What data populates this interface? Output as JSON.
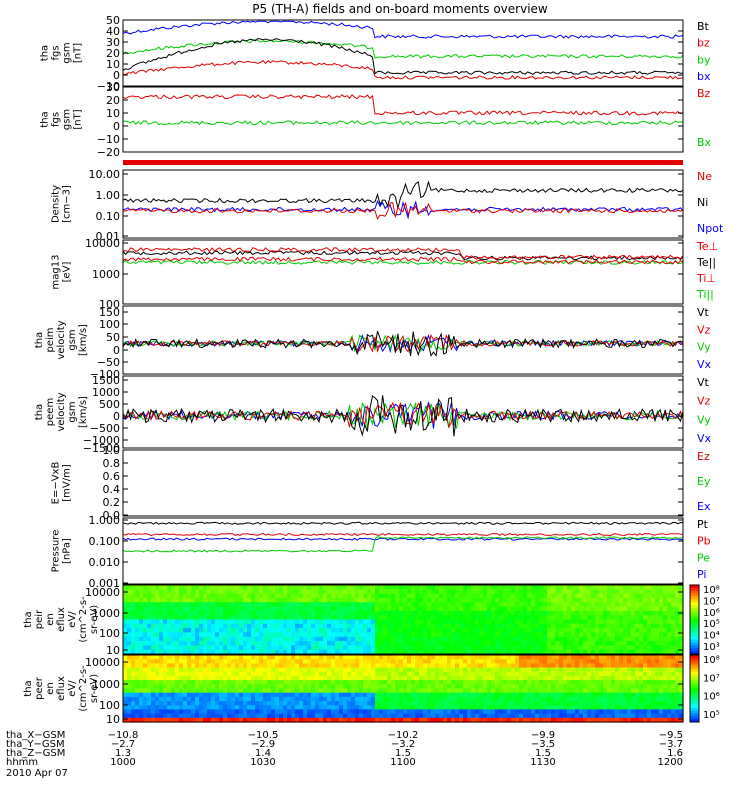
{
  "title": "P5 (TH-A) fields and on-board moments overview",
  "colors": {
    "black": "#000000",
    "red": "#e00000",
    "green": "#00cc00",
    "blue": "#0000ff"
  },
  "chart_data": [
    {
      "type": "line",
      "ylabel": [
        "tha",
        "fgs",
        "gsm",
        "[nT]"
      ],
      "yticks": [
        "50",
        "40",
        "30",
        "20",
        "10",
        "0",
        "−10"
      ],
      "legend": [
        {
          "name": "Bt",
          "color": "#000000"
        },
        {
          "name": "bz",
          "color": "#e00000"
        },
        {
          "name": "by",
          "color": "#00cc00"
        },
        {
          "name": "bx",
          "color": "#0000ff"
        }
      ]
    },
    {
      "type": "line",
      "ylabel": [
        "tha",
        "fgs",
        "gsm",
        "[nT]"
      ],
      "yticks": [
        "30",
        "20",
        "10",
        "0",
        "−10",
        "−20"
      ],
      "legend": [
        {
          "name": "Bz",
          "color": "#e00000"
        },
        {
          "name": "Bx",
          "color": "#00cc00"
        }
      ]
    },
    {
      "type": "line",
      "ylabel": [
        "Density",
        "[cm−3]"
      ],
      "yticks": [
        "10.00",
        "1.00",
        "0.10",
        "0.01"
      ],
      "legend": [
        {
          "name": "Ne",
          "color": "#e00000"
        },
        {
          "name": "Ni",
          "color": "#000000"
        },
        {
          "name": "Npot",
          "color": "#0000ff"
        }
      ]
    },
    {
      "type": "line",
      "ylabel": [
        "mag13",
        "[eV]"
      ],
      "yticks": [
        "10000",
        "1000",
        "100"
      ],
      "legend": [
        {
          "name": "Te⊥",
          "color": "#e00000"
        },
        {
          "name": "Te||",
          "color": "#000000"
        },
        {
          "name": "Ti⊥",
          "color": "#e00000"
        },
        {
          "name": "Ti||",
          "color": "#00cc00"
        }
      ]
    },
    {
      "type": "line",
      "ylabel": [
        "tha",
        "peim",
        "velocity",
        "gsm",
        "[km/s]"
      ],
      "yticks": [
        "150",
        "100",
        "50",
        "0",
        "−50",
        "−100"
      ],
      "legend": [
        {
          "name": "Vt",
          "color": "#000000"
        },
        {
          "name": "Vz",
          "color": "#e00000"
        },
        {
          "name": "Vy",
          "color": "#00cc00"
        },
        {
          "name": "Vx",
          "color": "#0000ff"
        }
      ]
    },
    {
      "type": "line",
      "ylabel": [
        "tha",
        "peem",
        "velocity",
        "gsm",
        "[km/s]"
      ],
      "yticks": [
        "1500",
        "1000",
        "500",
        "0",
        "−500",
        "−1000",
        "−1500"
      ],
      "legend": [
        {
          "name": "Vt",
          "color": "#000000"
        },
        {
          "name": "Vz",
          "color": "#e00000"
        },
        {
          "name": "Vy",
          "color": "#00cc00"
        },
        {
          "name": "Vx",
          "color": "#0000ff"
        }
      ]
    },
    {
      "type": "line",
      "ylabel": [
        "E=−VxB",
        "[mV/m]"
      ],
      "yticks": [
        "1.0",
        "0.8",
        "0.6",
        "0.4",
        "0.2",
        "0.0"
      ],
      "legend": [
        {
          "name": "Ez",
          "color": "#e00000"
        },
        {
          "name": "Ey",
          "color": "#00cc00"
        },
        {
          "name": "Ex",
          "color": "#0000ff"
        }
      ]
    },
    {
      "type": "line",
      "ylabel": [
        "Pressure",
        "[nPa]"
      ],
      "yticks": [
        "1.000",
        "0.100",
        "0.010",
        "0.001"
      ],
      "legend": [
        {
          "name": "Pt",
          "color": "#000000"
        },
        {
          "name": "Pb",
          "color": "#e00000"
        },
        {
          "name": "Pe",
          "color": "#00cc00"
        },
        {
          "name": "Pi",
          "color": "#0000ff"
        }
      ]
    },
    {
      "type": "heatmap",
      "ylabel": [
        "tha",
        "peir",
        "en",
        "eflux",
        "eV/",
        "(cm^2-s-",
        "sr-eV)"
      ],
      "yticks": [
        "10000",
        "1000",
        "100",
        "10"
      ],
      "colorbar_ticks": [
        "10⁸",
        "10⁷",
        "10⁶",
        "10⁵",
        "10⁴",
        "10³"
      ]
    },
    {
      "type": "heatmap",
      "ylabel": [
        "tha",
        "peer",
        "en",
        "eflux",
        "eV/",
        "(cm^2-s-",
        "sr-eV)"
      ],
      "yticks": [
        "10000",
        "1000",
        "100",
        "10"
      ],
      "colorbar_ticks": [
        "10⁸",
        "10⁷",
        "10⁶",
        "10⁵"
      ]
    }
  ],
  "xaxis": {
    "rows": [
      {
        "label": "tha_X−GSM",
        "values": [
          "−10.8",
          "−10.5",
          "−10.2",
          "−9.9",
          "−9.5"
        ]
      },
      {
        "label": "tha_Y−GSM",
        "values": [
          "−2.7",
          "−2.9",
          "−3.2",
          "−3.5",
          "−3.7"
        ]
      },
      {
        "label": "tha_Z−GSM",
        "values": [
          "1.3",
          "1.4",
          "1.5",
          "1.5",
          "1.6"
        ]
      },
      {
        "label": "hhmm",
        "values": [
          "1000",
          "1030",
          "1100",
          "1130",
          "1200"
        ]
      }
    ],
    "date": "2010 Apr 07"
  }
}
